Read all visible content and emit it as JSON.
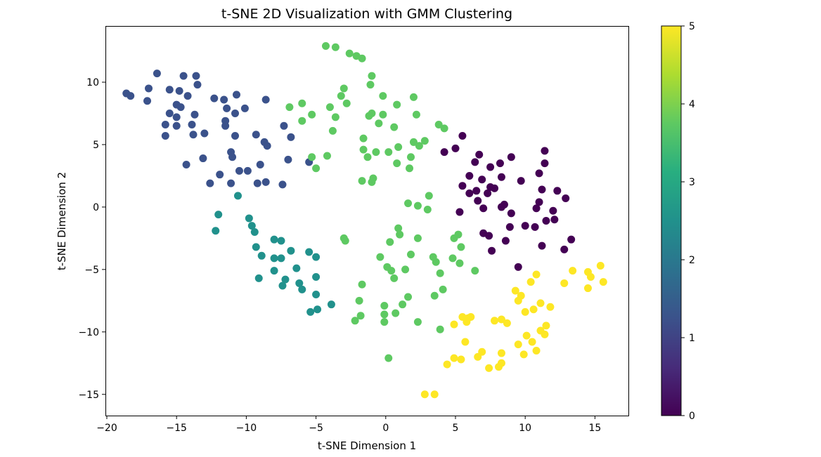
{
  "chart_data": {
    "type": "scatter",
    "title": "t-SNE 2D Visualization with GMM Clustering",
    "xlabel": "t-SNE Dimension 1",
    "ylabel": "t-SNE Dimension 2",
    "xlim": [
      -20.1,
      17.4
    ],
    "ylim": [
      -16.7,
      14.5
    ],
    "xticks": [
      -20,
      -15,
      -10,
      -5,
      0,
      5,
      10,
      15
    ],
    "yticks": [
      -15,
      -10,
      -5,
      0,
      5,
      10
    ],
    "colorbar": {
      "min": 0,
      "max": 5,
      "ticks": [
        0,
        1,
        2,
        3,
        4,
        5
      ],
      "colormap": "viridis"
    },
    "grid": false,
    "clusters": [
      {
        "cluster": 0,
        "color": "#440154",
        "points": [
          [
            4.2,
            4.4
          ],
          [
            5.0,
            4.7
          ],
          [
            5.5,
            5.7
          ],
          [
            6.4,
            3.6
          ],
          [
            6.7,
            4.2
          ],
          [
            7.5,
            3.2
          ],
          [
            8.2,
            3.5
          ],
          [
            9.0,
            4.0
          ],
          [
            5.5,
            1.7
          ],
          [
            6.0,
            1.1
          ],
          [
            6.5,
            1.3
          ],
          [
            6.9,
            2.2
          ],
          [
            7.3,
            1.1
          ],
          [
            7.5,
            1.6
          ],
          [
            7.8,
            1.5
          ],
          [
            8.3,
            2.4
          ],
          [
            6.0,
            2.5
          ],
          [
            5.3,
            -0.4
          ],
          [
            7.0,
            -0.1
          ],
          [
            8.3,
            0.0
          ],
          [
            8.5,
            0.2
          ],
          [
            9.0,
            -0.5
          ],
          [
            8.9,
            -1.6
          ],
          [
            9.7,
            2.1
          ],
          [
            10.0,
            -1.5
          ],
          [
            10.7,
            -1.6
          ],
          [
            10.8,
            -0.1
          ],
          [
            11.0,
            0.4
          ],
          [
            11.2,
            1.4
          ],
          [
            11.4,
            3.5
          ],
          [
            11.4,
            4.5
          ],
          [
            11.0,
            2.7
          ],
          [
            12.0,
            -0.3
          ],
          [
            12.1,
            -1.0
          ],
          [
            12.3,
            1.3
          ],
          [
            12.9,
            0.7
          ],
          [
            11.5,
            -1.1
          ],
          [
            12.8,
            -3.4
          ],
          [
            13.3,
            -2.6
          ],
          [
            11.2,
            -3.1
          ],
          [
            7.0,
            -2.1
          ],
          [
            7.4,
            -2.3
          ],
          [
            8.6,
            -2.7
          ],
          [
            7.6,
            -3.5
          ],
          [
            9.5,
            -4.8
          ],
          [
            6.6,
            0.5
          ]
        ]
      },
      {
        "cluster": 1,
        "color": "#3b528b",
        "points": [
          [
            -18.6,
            9.1
          ],
          [
            -18.3,
            8.9
          ],
          [
            -17.0,
            9.5
          ],
          [
            -17.1,
            8.5
          ],
          [
            -16.4,
            10.7
          ],
          [
            -15.5,
            9.4
          ],
          [
            -14.8,
            9.3
          ],
          [
            -14.5,
            10.5
          ],
          [
            -13.6,
            10.5
          ],
          [
            -13.5,
            9.8
          ],
          [
            -14.2,
            8.9
          ],
          [
            -15.0,
            8.2
          ],
          [
            -14.7,
            8.0
          ],
          [
            -15.5,
            7.5
          ],
          [
            -15.0,
            7.2
          ],
          [
            -13.7,
            7.4
          ],
          [
            -15.8,
            6.6
          ],
          [
            -15.0,
            6.5
          ],
          [
            -13.9,
            6.6
          ],
          [
            -15.8,
            5.7
          ],
          [
            -13.8,
            5.8
          ],
          [
            -13.0,
            5.9
          ],
          [
            -12.3,
            8.7
          ],
          [
            -11.6,
            8.6
          ],
          [
            -11.4,
            7.9
          ],
          [
            -10.7,
            9.0
          ],
          [
            -10.8,
            7.5
          ],
          [
            -11.5,
            6.9
          ],
          [
            -11.5,
            6.5
          ],
          [
            -10.1,
            7.9
          ],
          [
            -10.8,
            5.7
          ],
          [
            -9.3,
            5.8
          ],
          [
            -8.7,
            5.2
          ],
          [
            -8.5,
            4.9
          ],
          [
            -8.6,
            8.6
          ],
          [
            -11.1,
            4.4
          ],
          [
            -11.0,
            4.0
          ],
          [
            -13.1,
            3.9
          ],
          [
            -14.3,
            3.4
          ],
          [
            -12.6,
            1.9
          ],
          [
            -11.9,
            2.6
          ],
          [
            -11.1,
            1.9
          ],
          [
            -10.5,
            2.9
          ],
          [
            -9.9,
            2.9
          ],
          [
            -9.2,
            1.9
          ],
          [
            -8.6,
            2.0
          ],
          [
            -9.0,
            3.4
          ],
          [
            -7.4,
            1.8
          ],
          [
            -7.3,
            6.5
          ],
          [
            -6.8,
            5.6
          ],
          [
            -7.0,
            3.8
          ],
          [
            -5.5,
            3.6
          ]
        ]
      },
      {
        "cluster": 2,
        "color": "#21918c",
        "points": [
          [
            -12.0,
            -0.6
          ],
          [
            -12.2,
            -1.9
          ],
          [
            -9.8,
            -0.9
          ],
          [
            -9.6,
            -1.5
          ],
          [
            -9.4,
            -2.0
          ],
          [
            -8.0,
            -2.6
          ],
          [
            -7.5,
            -2.7
          ],
          [
            -6.8,
            -3.5
          ],
          [
            -9.3,
            -3.2
          ],
          [
            -8.9,
            -3.9
          ],
          [
            -8.0,
            -4.1
          ],
          [
            -7.5,
            -4.1
          ],
          [
            -9.1,
            -5.7
          ],
          [
            -8.0,
            -5.1
          ],
          [
            -7.2,
            -5.8
          ],
          [
            -7.4,
            -6.3
          ],
          [
            -6.4,
            -4.9
          ],
          [
            -6.2,
            -6.1
          ],
          [
            -6.0,
            -6.6
          ],
          [
            -5.5,
            -3.6
          ],
          [
            -5.0,
            -4.0
          ],
          [
            -5.0,
            -5.6
          ],
          [
            -5.0,
            -7.0
          ],
          [
            -4.9,
            -8.2
          ],
          [
            -5.4,
            -8.4
          ],
          [
            -3.9,
            -7.8
          ],
          [
            -10.6,
            0.9
          ]
        ]
      },
      {
        "cluster": 3,
        "color": "#5ec962",
        "points": [
          [
            -4.3,
            12.9
          ],
          [
            -3.6,
            12.8
          ],
          [
            -2.6,
            12.3
          ],
          [
            -2.1,
            12.1
          ],
          [
            -1.7,
            11.9
          ],
          [
            -1.0,
            10.5
          ],
          [
            -1.1,
            9.8
          ],
          [
            -3.0,
            9.5
          ],
          [
            -3.2,
            8.9
          ],
          [
            -2.8,
            8.3
          ],
          [
            -3.6,
            7.2
          ],
          [
            -4.0,
            8.0
          ],
          [
            -3.8,
            6.1
          ],
          [
            -4.2,
            4.1
          ],
          [
            -5.3,
            4.0
          ],
          [
            -5.0,
            3.1
          ],
          [
            -6.9,
            8.0
          ],
          [
            -6.0,
            8.3
          ],
          [
            -5.3,
            7.4
          ],
          [
            -6.0,
            6.9
          ],
          [
            -1.0,
            7.5
          ],
          [
            -1.2,
            7.3
          ],
          [
            -0.5,
            6.7
          ],
          [
            -0.2,
            7.4
          ],
          [
            -0.2,
            8.9
          ],
          [
            0.8,
            8.2
          ],
          [
            2.0,
            8.8
          ],
          [
            2.2,
            7.4
          ],
          [
            0.6,
            6.4
          ],
          [
            -1.6,
            5.5
          ],
          [
            -1.6,
            4.6
          ],
          [
            -1.3,
            4.0
          ],
          [
            -0.7,
            4.4
          ],
          [
            0.2,
            4.4
          ],
          [
            0.9,
            4.8
          ],
          [
            1.8,
            4.0
          ],
          [
            0.8,
            3.5
          ],
          [
            1.7,
            3.1
          ],
          [
            2.0,
            5.2
          ],
          [
            2.4,
            4.9
          ],
          [
            2.8,
            5.3
          ],
          [
            3.8,
            6.6
          ],
          [
            4.2,
            6.3
          ],
          [
            -1.0,
            2.0
          ],
          [
            -0.9,
            2.3
          ],
          [
            -1.7,
            2.1
          ],
          [
            3.1,
            0.9
          ],
          [
            -3.0,
            -2.5
          ],
          [
            -2.9,
            -2.7
          ]
        ]
      },
      {
        "cluster": 4,
        "color": "#5ec962",
        "points": [
          [
            1.6,
            0.3
          ],
          [
            2.3,
            0.1
          ],
          [
            3.0,
            -0.2
          ],
          [
            0.9,
            -1.7
          ],
          [
            1.0,
            -2.2
          ],
          [
            0.3,
            -2.8
          ],
          [
            -0.4,
            -4.0
          ],
          [
            0.1,
            -4.8
          ],
          [
            0.4,
            -5.1
          ],
          [
            0.6,
            -5.7
          ],
          [
            1.4,
            -5.0
          ],
          [
            1.8,
            -3.8
          ],
          [
            2.3,
            -2.5
          ],
          [
            3.4,
            -4.0
          ],
          [
            3.6,
            -4.4
          ],
          [
            3.9,
            -5.3
          ],
          [
            3.5,
            -7.1
          ],
          [
            4.1,
            -6.6
          ],
          [
            4.8,
            -4.1
          ],
          [
            4.9,
            -2.5
          ],
          [
            5.2,
            -2.2
          ],
          [
            5.4,
            -3.2
          ],
          [
            5.3,
            -4.5
          ],
          [
            6.4,
            -5.1
          ],
          [
            -1.7,
            -6.2
          ],
          [
            -1.9,
            -7.5
          ],
          [
            -1.8,
            -8.7
          ],
          [
            -2.2,
            -9.1
          ],
          [
            -0.1,
            -7.9
          ],
          [
            -0.1,
            -8.6
          ],
          [
            -0.1,
            -9.2
          ],
          [
            0.7,
            -8.5
          ],
          [
            1.2,
            -7.8
          ],
          [
            1.6,
            -7.2
          ],
          [
            2.3,
            -9.2
          ],
          [
            3.9,
            -9.8
          ],
          [
            0.2,
            -12.1
          ]
        ]
      },
      {
        "cluster": 5,
        "color": "#fde725",
        "points": [
          [
            5.5,
            -8.8
          ],
          [
            5.9,
            -8.9
          ],
          [
            6.1,
            -8.8
          ],
          [
            5.8,
            -9.2
          ],
          [
            4.9,
            -9.4
          ],
          [
            5.7,
            -10.8
          ],
          [
            4.9,
            -12.1
          ],
          [
            5.4,
            -12.2
          ],
          [
            4.4,
            -12.6
          ],
          [
            6.6,
            -12.0
          ],
          [
            6.9,
            -11.6
          ],
          [
            7.4,
            -12.9
          ],
          [
            8.1,
            -12.8
          ],
          [
            8.3,
            -11.7
          ],
          [
            8.3,
            -12.5
          ],
          [
            7.8,
            -9.1
          ],
          [
            8.3,
            -9.0
          ],
          [
            8.7,
            -9.3
          ],
          [
            9.3,
            -6.7
          ],
          [
            9.5,
            -7.5
          ],
          [
            9.7,
            -7.1
          ],
          [
            10.0,
            -8.4
          ],
          [
            9.5,
            -11.0
          ],
          [
            9.9,
            -11.8
          ],
          [
            10.1,
            -10.3
          ],
          [
            10.5,
            -10.8
          ],
          [
            10.8,
            -11.5
          ],
          [
            10.6,
            -8.2
          ],
          [
            11.1,
            -7.7
          ],
          [
            11.1,
            -9.9
          ],
          [
            11.5,
            -9.5
          ],
          [
            11.4,
            -10.2
          ],
          [
            11.8,
            -8.0
          ],
          [
            10.4,
            -6.0
          ],
          [
            10.8,
            -5.4
          ],
          [
            12.8,
            -6.1
          ],
          [
            13.4,
            -5.1
          ],
          [
            14.5,
            -5.2
          ],
          [
            14.7,
            -5.6
          ],
          [
            14.5,
            -6.5
          ],
          [
            15.4,
            -4.7
          ],
          [
            15.6,
            -6.0
          ],
          [
            2.8,
            -15.0
          ],
          [
            3.5,
            -15.0
          ]
        ]
      }
    ]
  }
}
